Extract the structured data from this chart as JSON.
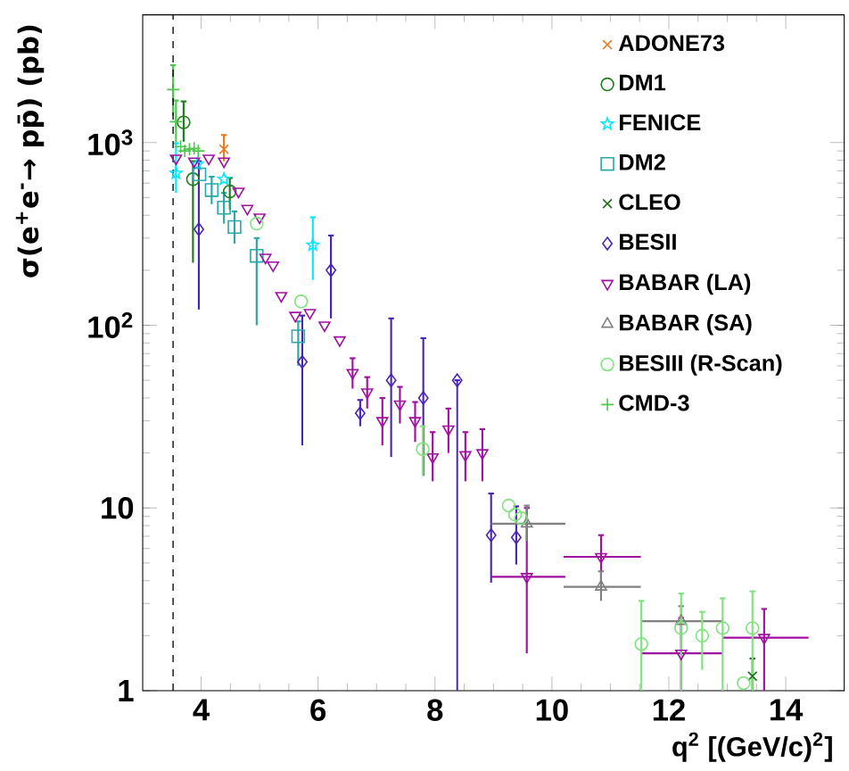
{
  "chart_data": {
    "type": "scatter",
    "xlabel": "q$^{2}$ [(GeV/c)$^{2}$]",
    "ylabel": "σ(e$^{+}$e$^{-}$→ pp̄) (pb)",
    "xlim": [
      3,
      15
    ],
    "xticks": [
      4,
      6,
      8,
      10,
      12,
      14
    ],
    "ylim": [
      1,
      5000
    ],
    "yticks": [
      1,
      10,
      {
        "value": 100,
        "label": "10$^{2}$"
      },
      {
        "value": 1000,
        "label": "10$^{3}$"
      }
    ],
    "log": "y",
    "grid": false,
    "legend": "top right",
    "ref_lines": [
      {
        "axis": "x",
        "value": 3.52,
        "color": "#000000",
        "line_style": "dashed"
      }
    ],
    "series": [
      {
        "name": "ADONE73",
        "color": "#e8781e",
        "marker": "cross",
        "x": [
          4.39
        ],
        "values": [
          920
        ],
        "errors": [
          [
            790,
            1100
          ]
        ]
      },
      {
        "name": "DM1",
        "color": "#1e7b1e",
        "marker": "circle",
        "x": [
          3.7,
          3.86,
          4.49
        ],
        "values": [
          1290,
          630,
          540
        ],
        "errors": [
          [
            1010,
            1680
          ],
          [
            220,
            790
          ],
          [
            430,
            640
          ]
        ]
      },
      {
        "name": "FENICE",
        "color": "#00e8ff",
        "marker": "star",
        "x": [
          3.57,
          3.93,
          4.39,
          5.91
        ],
        "values": [
          680,
          760,
          630,
          275
        ],
        "errors": [
          [
            530,
            990
          ],
          null,
          null,
          [
            177,
            390
          ]
        ]
      },
      {
        "name": "DM2",
        "color": "#2aa7a7",
        "marker": "square",
        "x": [
          3.97,
          4.18,
          4.39,
          4.57,
          4.95,
          5.66
        ],
        "values": [
          670,
          550,
          440,
          345,
          240,
          87
        ],
        "errors": [
          null,
          [
            460,
            650
          ],
          [
            360,
            530
          ],
          [
            280,
            420
          ],
          [
            100,
            300
          ],
          [
            60,
            105
          ]
        ]
      },
      {
        "name": "CLEO",
        "color": "#1e6e1e",
        "marker": "cross",
        "x": [
          13.43
        ],
        "values": [
          1.2
        ],
        "errors": [
          [
            1.0,
            1.5
          ]
        ]
      },
      {
        "name": "BESII",
        "color": "#4a24b4",
        "marker": "diamond",
        "x": [
          3.96,
          5.73,
          6.22,
          6.72,
          7.25,
          7.8,
          8.38,
          8.96,
          9.39
        ],
        "values": [
          335,
          63,
          200,
          33,
          50,
          40,
          50,
          7.1,
          6.9
        ],
        "errors": [
          [
            122,
            790
          ],
          [
            22,
            113
          ],
          [
            109,
            310
          ],
          [
            28,
            39
          ],
          [
            19,
            109
          ],
          [
            15,
            85
          ],
          [
            1,
            50
          ],
          [
            3.9,
            12
          ],
          [
            4.9,
            10.2
          ]
        ]
      },
      {
        "name": "BABAR (LA)",
        "color": "#a010a0",
        "marker": "triangle-down",
        "x": [
          3.57,
          3.88,
          4.13,
          4.39,
          4.64,
          4.79,
          5.0,
          5.1,
          5.23,
          5.37,
          5.61,
          5.86,
          6.11,
          6.37,
          6.59,
          6.84,
          7.1,
          7.4,
          7.66,
          7.96,
          8.23,
          8.52,
          8.81,
          9.57,
          10.84,
          12.21,
          13.63
        ],
        "values": [
          820,
          790,
          820,
          790,
          540,
          435,
          390,
          235,
          213,
          145,
          113,
          117,
          100,
          83,
          55,
          43,
          30,
          37,
          30,
          19,
          27,
          19.5,
          20,
          4.2,
          5.4,
          1.6,
          1.95
        ],
        "errors": [
          null,
          null,
          null,
          null,
          null,
          null,
          null,
          null,
          null,
          null,
          null,
          null,
          null,
          null,
          [
            45,
            66
          ],
          [
            35,
            52
          ],
          [
            22,
            40
          ],
          [
            29,
            46
          ],
          [
            23,
            38
          ],
          [
            14,
            26
          ],
          [
            20,
            35
          ],
          [
            14,
            26
          ],
          [
            14,
            27
          ],
          [
            1.6,
            10
          ],
          [
            4.0,
            7.1
          ],
          [
            1,
            2.5
          ],
          [
            1,
            2.8
          ]
        ],
        "xerrors": [
          null,
          null,
          null,
          null,
          null,
          null,
          null,
          null,
          null,
          null,
          null,
          null,
          null,
          null,
          null,
          null,
          null,
          null,
          null,
          null,
          null,
          null,
          null,
          [
            8.96,
            10.23
          ],
          [
            10.2,
            11.52
          ],
          [
            11.52,
            12.92
          ],
          [
            12.92,
            14.39
          ]
        ]
      },
      {
        "name": "BABAR (SA)",
        "color": "#808080",
        "marker": "triangle",
        "x": [
          9.57,
          10.84,
          12.21
        ],
        "values": [
          8.2,
          3.7,
          2.4
        ],
        "errors": [
          [
            6.6,
            10.3
          ],
          [
            3.1,
            4.5
          ],
          [
            1.9,
            2.9
          ]
        ],
        "xerrors": [
          [
            8.96,
            10.23
          ],
          [
            10.2,
            11.52
          ],
          [
            11.52,
            12.92
          ]
        ]
      },
      {
        "name": "BESIII (R-Scan)",
        "color": "#7fe27f",
        "marker": "circle",
        "x": [
          4.95,
          5.71,
          7.79,
          9.26,
          9.37,
          9.47,
          11.53,
          12.21,
          12.57,
          12.92,
          13.28,
          13.43
        ],
        "values": [
          360,
          135,
          21,
          10.3,
          9.2,
          8.8,
          1.8,
          2.2,
          2.0,
          2.2,
          1.1,
          2.2
        ],
        "errors": [
          null,
          null,
          [
            15,
            28
          ],
          null,
          null,
          null,
          [
            1,
            3.1
          ],
          [
            1,
            3.4
          ],
          [
            1.3,
            2.7
          ],
          [
            1,
            3.2
          ],
          null,
          [
            1,
            3.5
          ]
        ]
      },
      {
        "name": "CMD-3",
        "color": "#4cc84c",
        "marker": "plus",
        "x": [
          3.52,
          3.57,
          3.65,
          3.72,
          3.8,
          3.88,
          3.95
        ],
        "values": [
          1950,
          1300,
          950,
          900,
          920,
          930,
          900
        ],
        "errors": [
          [
            1400,
            2650
          ],
          [
            1000,
            1700
          ],
          null,
          null,
          null,
          null,
          null
        ]
      }
    ]
  }
}
